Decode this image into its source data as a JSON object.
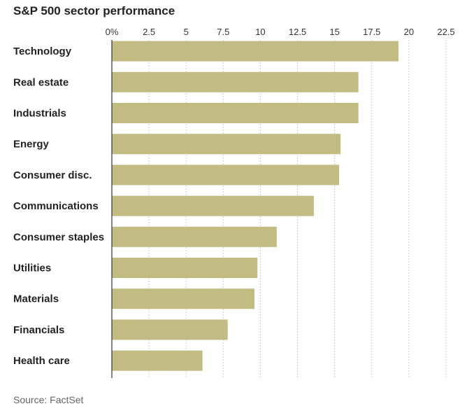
{
  "title": "S&P 500 sector performance",
  "source": "Source: FactSet",
  "chart_data": {
    "type": "bar",
    "orientation": "horizontal",
    "title": "S&P 500 sector performance",
    "xlabel": "",
    "ylabel": "",
    "xlim": [
      0,
      22.5
    ],
    "x_ticks": [
      "0%",
      "2.5",
      "5",
      "7.5",
      "10",
      "12.5",
      "15",
      "17.5",
      "20",
      "22.5"
    ],
    "x_tick_values": [
      0,
      2.5,
      5,
      7.5,
      10,
      12.5,
      15,
      17.5,
      20,
      22.5
    ],
    "grid": true,
    "categories": [
      "Technology",
      "Real estate",
      "Industrials",
      "Energy",
      "Consumer disc.",
      "Communications",
      "Consumer staples",
      "Utilities",
      "Materials",
      "Financials",
      "Health care"
    ],
    "values": [
      19.3,
      16.6,
      16.6,
      15.4,
      15.3,
      13.6,
      11.1,
      9.8,
      9.6,
      7.8,
      6.1
    ],
    "bar_color": "#c2bb82",
    "grid_color": "#d0d0d0",
    "axis_color": "#333333"
  }
}
